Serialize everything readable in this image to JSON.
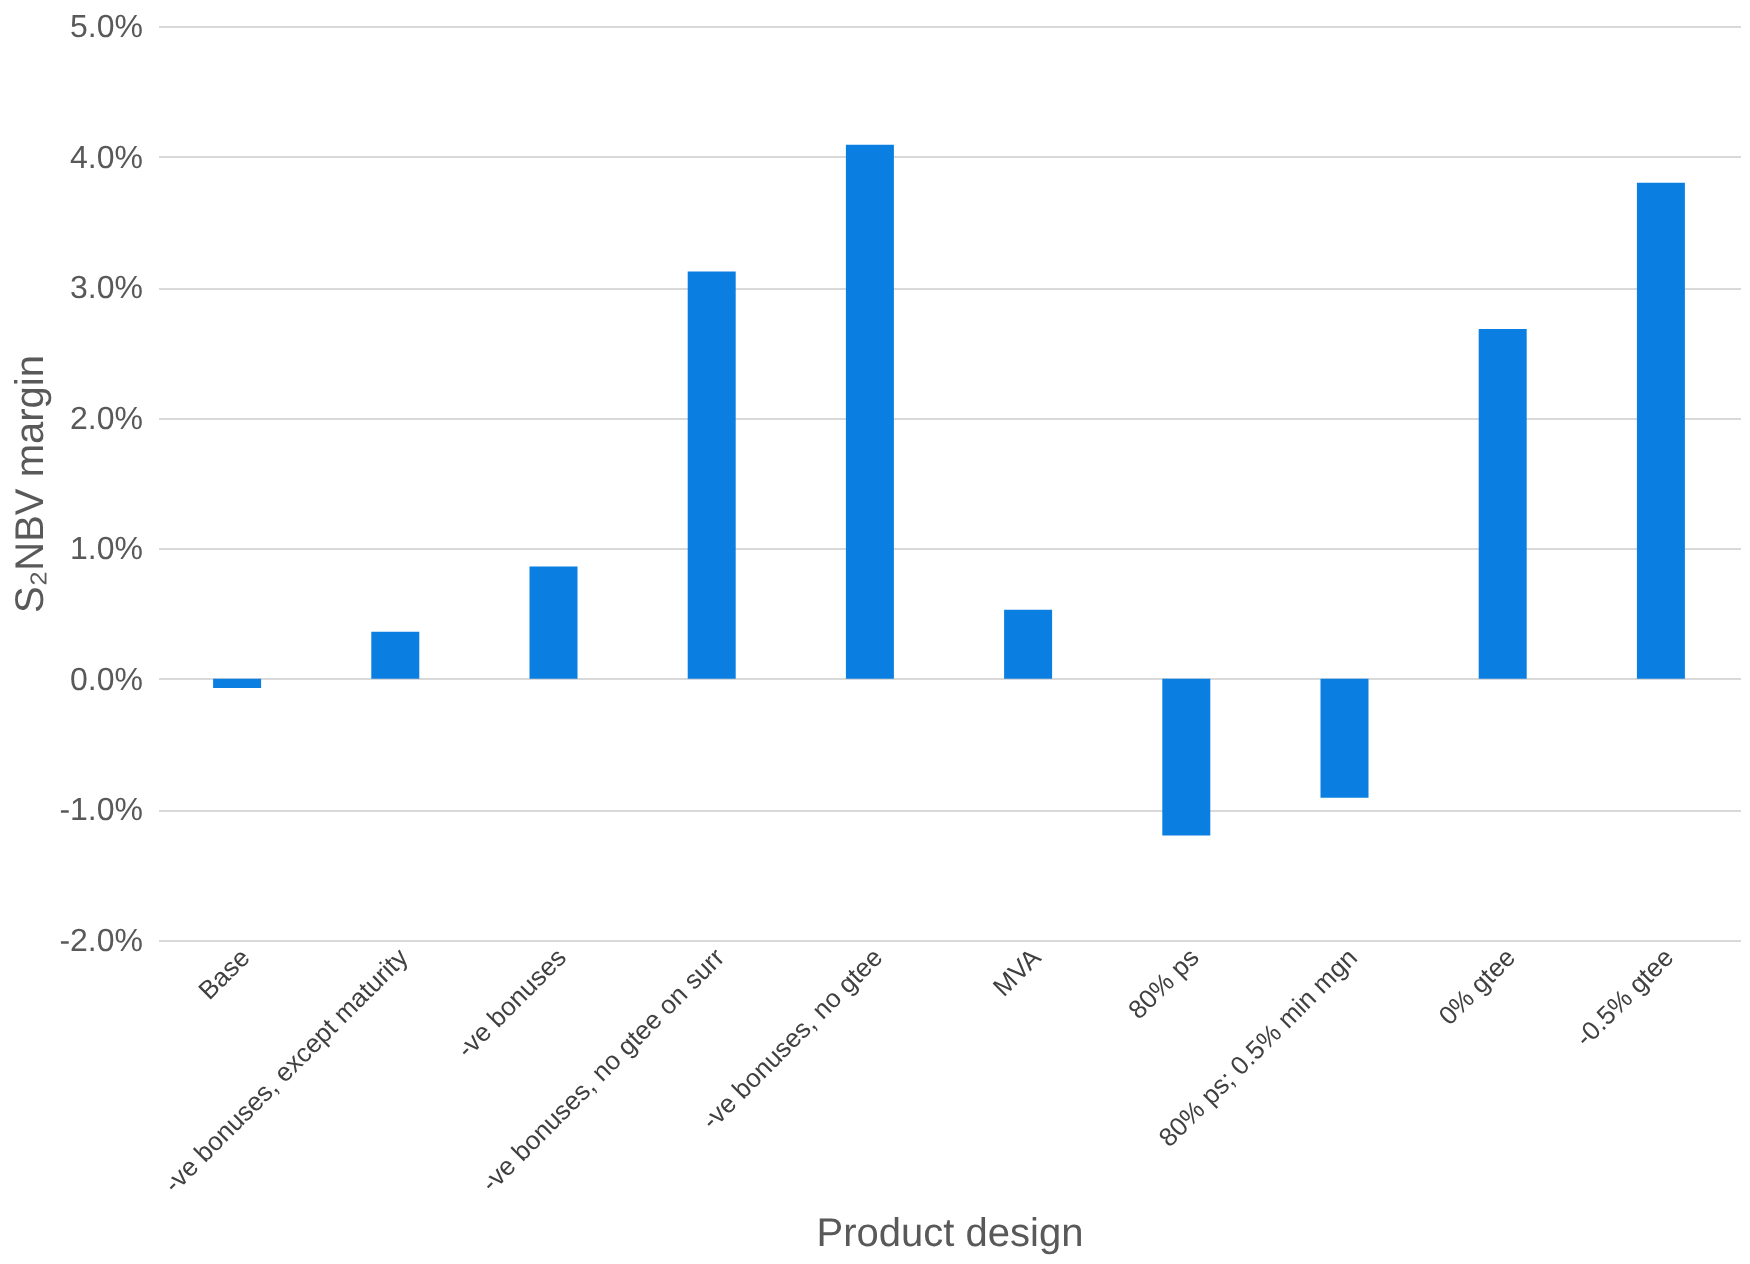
{
  "chart_data": {
    "type": "bar",
    "xlabel": "Product design",
    "ylabel": "S₂NBV margin",
    "categories": [
      "Base",
      "-ve bonuses, except maturity",
      "-ve bonuses",
      "-ve bonuses, no gtee on surr",
      "-ve bonuses, no gtee",
      "MVA",
      "80% ps",
      "80% ps; 0.5% min mgn",
      "0% gtee",
      "-0.5% gtee"
    ],
    "values": [
      -0.07,
      0.36,
      0.86,
      3.12,
      4.09,
      0.53,
      -1.2,
      -0.91,
      2.68,
      3.8
    ],
    "color": "#0b7fe1",
    "ylim": [
      -2,
      5
    ],
    "yticks": [
      {
        "value": -2,
        "label": "-2.0%"
      },
      {
        "value": -1,
        "label": "-1.0%"
      },
      {
        "value": 0,
        "label": "0.0%"
      },
      {
        "value": 1,
        "label": "1.0%"
      },
      {
        "value": 2,
        "label": "2.0%"
      },
      {
        "value": 3,
        "label": "3.0%"
      },
      {
        "value": 4,
        "label": "4.0%"
      },
      {
        "value": 5,
        "label": "5.0%"
      }
    ],
    "grid": "y"
  }
}
